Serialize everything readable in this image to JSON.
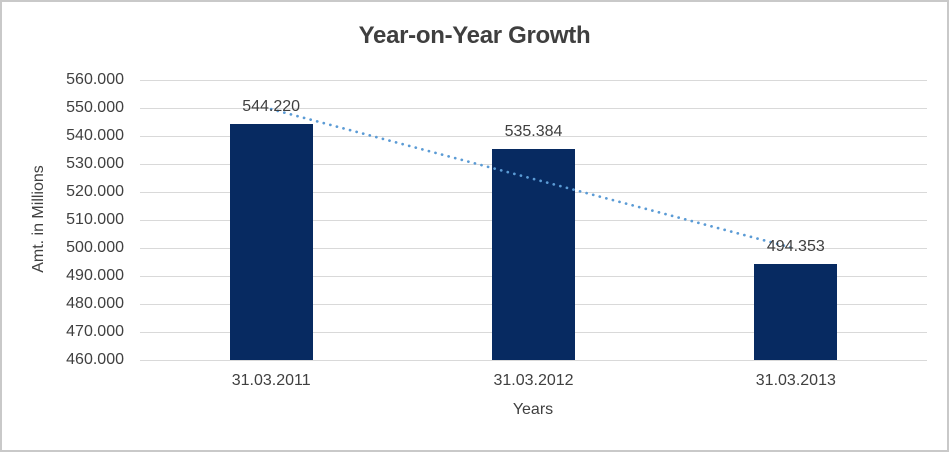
{
  "chart_data": {
    "type": "bar",
    "title": "Year-on-Year Growth",
    "xlabel": "Years",
    "ylabel": "Amt. in Millions",
    "categories": [
      "31.03.2011",
      "31.03.2012",
      "31.03.2013"
    ],
    "values": [
      544220,
      535384,
      494353
    ],
    "value_labels": [
      "544.220",
      "535.384",
      "494.353"
    ],
    "ytick_labels": [
      "460.000",
      "470.000",
      "480.000",
      "490.000",
      "500.000",
      "510.000",
      "520.000",
      "530.000",
      "540.000",
      "550.000",
      "560.000"
    ],
    "ylim": [
      460000,
      560000
    ],
    "ytick_step": 10000,
    "grid": true,
    "legend": "none",
    "trendline": {
      "type": "linear",
      "style": "dotted"
    }
  },
  "colors": {
    "bar": "#072A61",
    "trendline": "#5B9BD5",
    "gridline": "#D9D9D9",
    "text": "#404040",
    "title": "#3F3F3F",
    "border": "#C9C9C9",
    "background": "#FFFFFF"
  }
}
